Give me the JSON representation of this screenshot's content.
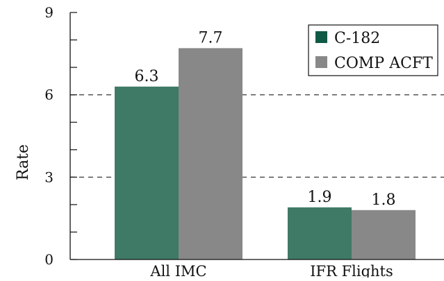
{
  "chart_data": {
    "type": "bar",
    "title": "",
    "xlabel": "",
    "ylabel": "Rate",
    "ylim": [
      0,
      9
    ],
    "yticks": [
      0,
      3,
      6,
      9
    ],
    "grid": "dashed-horizontal",
    "legend_position": "top-right",
    "categories": [
      "All IMC",
      "IFR Flights"
    ],
    "series": [
      {
        "name": "C-182",
        "color": "#3f7a66",
        "values": [
          6.3,
          1.9
        ],
        "labels": [
          "6.3",
          "1.9"
        ]
      },
      {
        "name": "COMP ACFT",
        "color": "#888888",
        "values": [
          7.7,
          1.8
        ],
        "labels": [
          "7.7",
          "1.8"
        ]
      }
    ]
  }
}
